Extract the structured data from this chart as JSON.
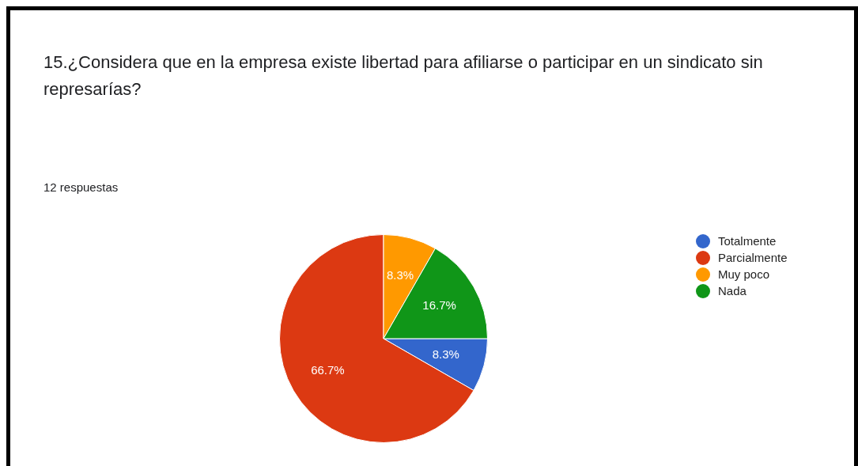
{
  "chart_data": {
    "type": "pie",
    "title": "15.¿Considera que en la empresa existe libertad para afiliarse o participar en un sindicato sin represarías?",
    "subtitle": "12 respuestas",
    "categories": [
      "Totalmente",
      "Parcialmente",
      "Muy poco",
      "Nada"
    ],
    "values": [
      8.3,
      66.7,
      8.3,
      16.7
    ],
    "value_labels": [
      "8.3%",
      "66.7%",
      "8.3%",
      "16.7%"
    ],
    "colors": [
      "#3366cc",
      "#dc3912",
      "#ff9900",
      "#109618"
    ],
    "legend": "right"
  }
}
